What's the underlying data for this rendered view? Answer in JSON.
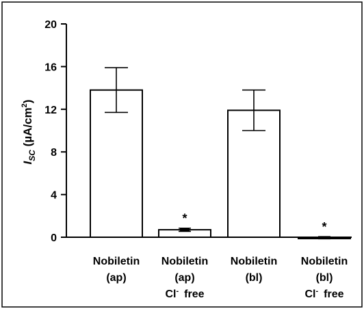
{
  "chart_data": {
    "type": "bar",
    "ylabel": {
      "italic": "I",
      "sub": "SC",
      "rest": " (µA/cm",
      "sup": "2",
      "close": ")"
    },
    "ylim": [
      0,
      20
    ],
    "yticks": [
      0,
      4,
      8,
      12,
      16,
      20
    ],
    "categories": [
      {
        "lines": [
          "Nobiletin",
          "(ap)"
        ]
      },
      {
        "lines": [
          "Nobiletin",
          "(ap)"
        ],
        "cl": {
          "base": "Cl",
          "sup": "-",
          "word": "free"
        }
      },
      {
        "lines": [
          "Nobiletin",
          "(bl)"
        ]
      },
      {
        "lines": [
          "Nobiletin",
          "(bl)"
        ],
        "cl": {
          "base": "Cl",
          "sup": "-",
          "word": "free"
        }
      }
    ],
    "values": [
      13.8,
      0.7,
      11.9,
      -0.05
    ],
    "errors": [
      2.1,
      0.15,
      1.9,
      0.1
    ],
    "annotations": [
      "",
      "*",
      "",
      "*"
    ],
    "bar_fill": "#ffffff",
    "bar_stroke": "#000000",
    "grid": false
  }
}
